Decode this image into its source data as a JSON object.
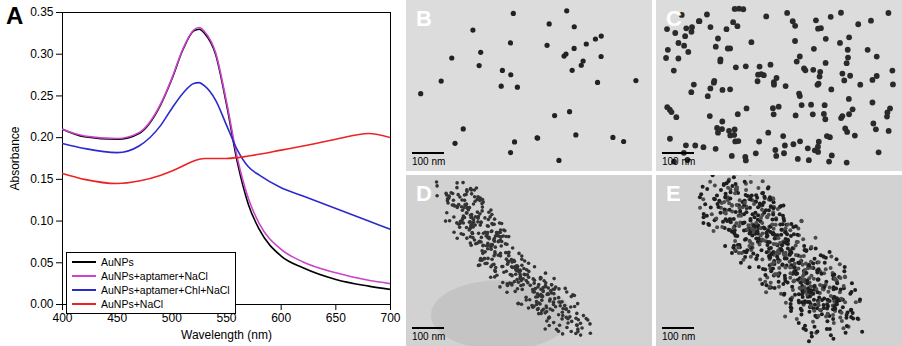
{
  "chart_data": {
    "type": "line",
    "title": "A",
    "x_label": "Wavelength (nm)",
    "y_label": "Absorbance",
    "xlim": [
      400,
      700
    ],
    "xticks": [
      400,
      450,
      500,
      550,
      600,
      650,
      700
    ],
    "ylim": [
      0,
      0.35
    ],
    "yticks": [
      {
        "value": 0,
        "label": "0.00"
      },
      {
        "value": 0.05,
        "label": "0.05"
      },
      {
        "value": 0.1,
        "label": "0.10"
      },
      {
        "value": 0.15,
        "label": "0.15"
      },
      {
        "value": 0.2,
        "label": "0.20"
      },
      {
        "value": 0.25,
        "label": "0.25"
      },
      {
        "value": 0.3,
        "label": "0.30"
      },
      {
        "value": 0.35,
        "label": "0.35"
      }
    ],
    "legend": "lower left",
    "x": [
      400,
      420,
      450,
      470,
      490,
      500,
      510,
      520,
      525,
      530,
      540,
      550,
      560,
      570,
      580,
      600,
      620,
      650,
      680,
      700
    ],
    "series": [
      {
        "name": "AuNPs",
        "color": "#000000",
        "values": [
          0.21,
          0.201,
          0.198,
          0.205,
          0.24,
          0.27,
          0.305,
          0.328,
          0.33,
          0.325,
          0.3,
          0.24,
          0.17,
          0.12,
          0.09,
          0.058,
          0.044,
          0.03,
          0.022,
          0.018
        ]
      },
      {
        "name": "AuNPs+aptamer+NaCl",
        "color": "#cc44cc",
        "values": [
          0.21,
          0.202,
          0.199,
          0.206,
          0.241,
          0.271,
          0.306,
          0.329,
          0.332,
          0.327,
          0.302,
          0.243,
          0.175,
          0.127,
          0.097,
          0.066,
          0.051,
          0.038,
          0.029,
          0.025
        ]
      },
      {
        "name": "AuNPs+aptamer+Chl+NaCl",
        "color": "#2a2ad0",
        "values": [
          0.193,
          0.187,
          0.182,
          0.19,
          0.215,
          0.235,
          0.253,
          0.265,
          0.266,
          0.262,
          0.245,
          0.215,
          0.185,
          0.165,
          0.155,
          0.14,
          0.13,
          0.115,
          0.1,
          0.09
        ]
      },
      {
        "name": "AuNPs+NaCl",
        "color": "#ee2222",
        "values": [
          0.157,
          0.15,
          0.145,
          0.148,
          0.155,
          0.16,
          0.166,
          0.172,
          0.174,
          0.175,
          0.175,
          0.175,
          0.176,
          0.178,
          0.18,
          0.185,
          0.19,
          0.198,
          0.205,
          0.2
        ]
      }
    ]
  },
  "panels": [
    {
      "label": "B",
      "scale_bar": "100 nm"
    },
    {
      "label": "C",
      "scale_bar": "100 nm"
    },
    {
      "label": "D",
      "scale_bar": "100 nm"
    },
    {
      "label": "E",
      "scale_bar": "100 nm"
    }
  ]
}
